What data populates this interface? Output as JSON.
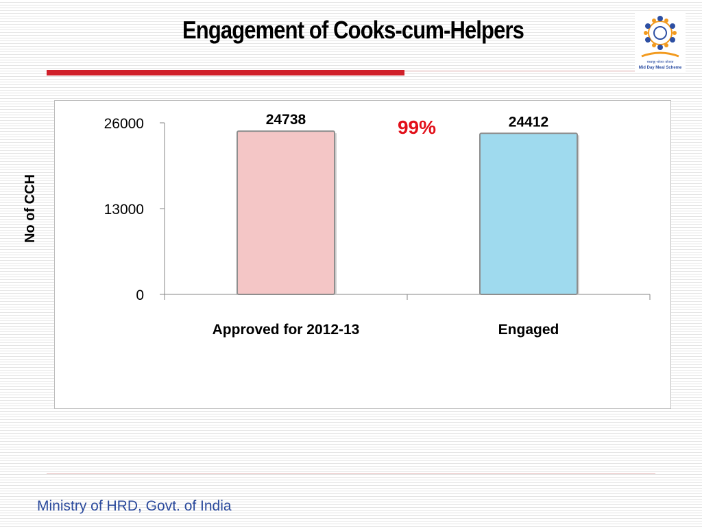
{
  "slide": {
    "title": "Engagement of Cooks-cum-Helpers",
    "footer": "Ministry of HRD, Govt. of India",
    "logo": {
      "icon": "mid-day-meal-scheme-logo",
      "hindi_text": "मध्याह्न भोजन योजना",
      "caption": "Mid Day Meal Scheme"
    }
  },
  "chart_data": {
    "type": "bar",
    "title": "",
    "xlabel": "",
    "ylabel": "No of CCH",
    "categories": [
      "Approved for 2012-13",
      "Engaged"
    ],
    "values": [
      24738,
      24412
    ],
    "data_labels": [
      "24738",
      "24412"
    ],
    "bar_colors": [
      "#f4c6c6",
      "#9fdaee"
    ],
    "bar_stroke": "#8e8e8e",
    "ylim": [
      0,
      26000
    ],
    "yticks": [
      0,
      13000,
      26000
    ],
    "grid": false,
    "legend": "none",
    "annotation": {
      "text": "99%",
      "color": "#e2101a"
    }
  },
  "colors": {
    "title_rule": "#d0202a",
    "footer_text": "#2b4a9c"
  }
}
